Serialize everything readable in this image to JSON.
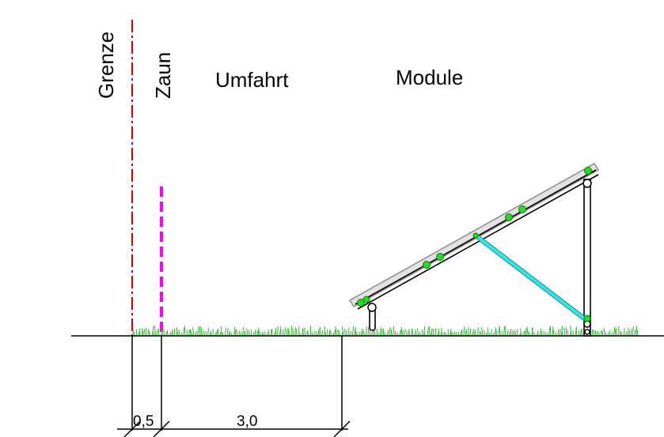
{
  "labels": {
    "boundary": "Grenze",
    "fence": "Zaun",
    "driveway": "Umfahrt",
    "modules": "Module"
  },
  "dimensions": {
    "fence_offset": "0,5",
    "driveway_width": "3,0"
  },
  "colors": {
    "boundary_line": "#d40000",
    "fence_line": "#ff00ff",
    "grass": "#2fb82f",
    "brace": "#33e6e6",
    "clamp": "#22dd22",
    "module_surface": "#bdbdbd",
    "structure": "#000000"
  }
}
